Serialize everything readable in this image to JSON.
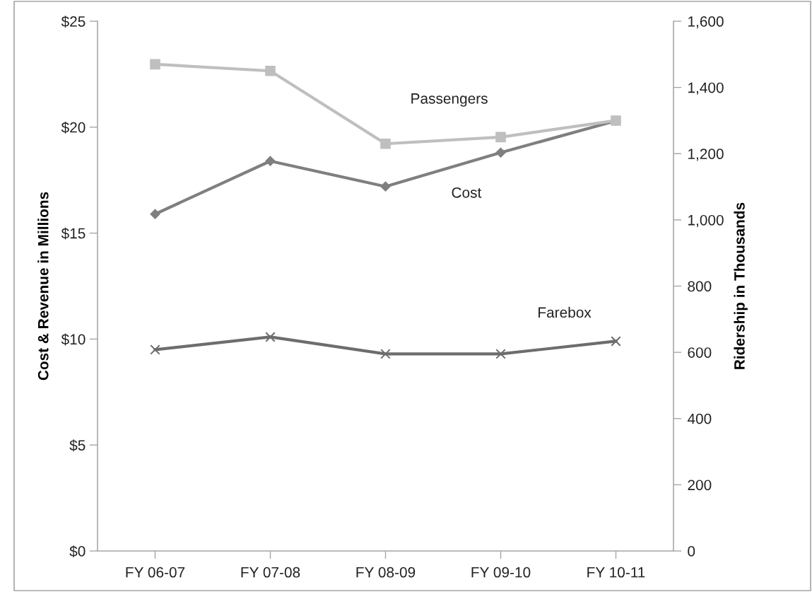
{
  "chart_data": {
    "type": "line",
    "ylabel": "Cost & Revenue in Millions",
    "y2label": "Ridership in Thousands",
    "categories": [
      "FY 06-07",
      "FY 07-08",
      "FY 08-09",
      "FY 09-10",
      "FY 10-11"
    ],
    "series": [
      {
        "name": "Passengers",
        "color": "#bfbfbf",
        "marker": "square",
        "axis": "y2",
        "values": [
          1470,
          1450,
          1230,
          1250,
          1300
        ]
      },
      {
        "name": "Cost",
        "color": "#7f7f7f",
        "marker": "diamond",
        "axis": "y",
        "values": [
          15.9,
          18.4,
          17.2,
          18.8,
          20.3
        ]
      },
      {
        "name": "Farebox",
        "color": "#6d6d6d",
        "marker": "cross",
        "axis": "y",
        "values": [
          9.5,
          10.1,
          9.3,
          9.3,
          9.9
        ]
      }
    ],
    "ylim": [
      0,
      25
    ],
    "yticks": [
      {
        "value": 0,
        "label": "$0"
      },
      {
        "value": 5,
        "label": "$5"
      },
      {
        "value": 10,
        "label": "$10"
      },
      {
        "value": 15,
        "label": "$15"
      },
      {
        "value": 20,
        "label": "$20"
      },
      {
        "value": 25,
        "label": "$25"
      }
    ],
    "y2lim": [
      0,
      1600
    ],
    "y2ticks": [
      {
        "value": 0,
        "label": "0"
      },
      {
        "value": 200,
        "label": "200"
      },
      {
        "value": 400,
        "label": "400"
      },
      {
        "value": 600,
        "label": "600"
      },
      {
        "value": 800,
        "label": "800"
      },
      {
        "value": 1000,
        "label": "1,000"
      },
      {
        "value": 1200,
        "label": "1,200"
      },
      {
        "value": 1400,
        "label": "1,400"
      },
      {
        "value": 1600,
        "label": "1,600"
      }
    ],
    "grid": false,
    "legend": false
  }
}
